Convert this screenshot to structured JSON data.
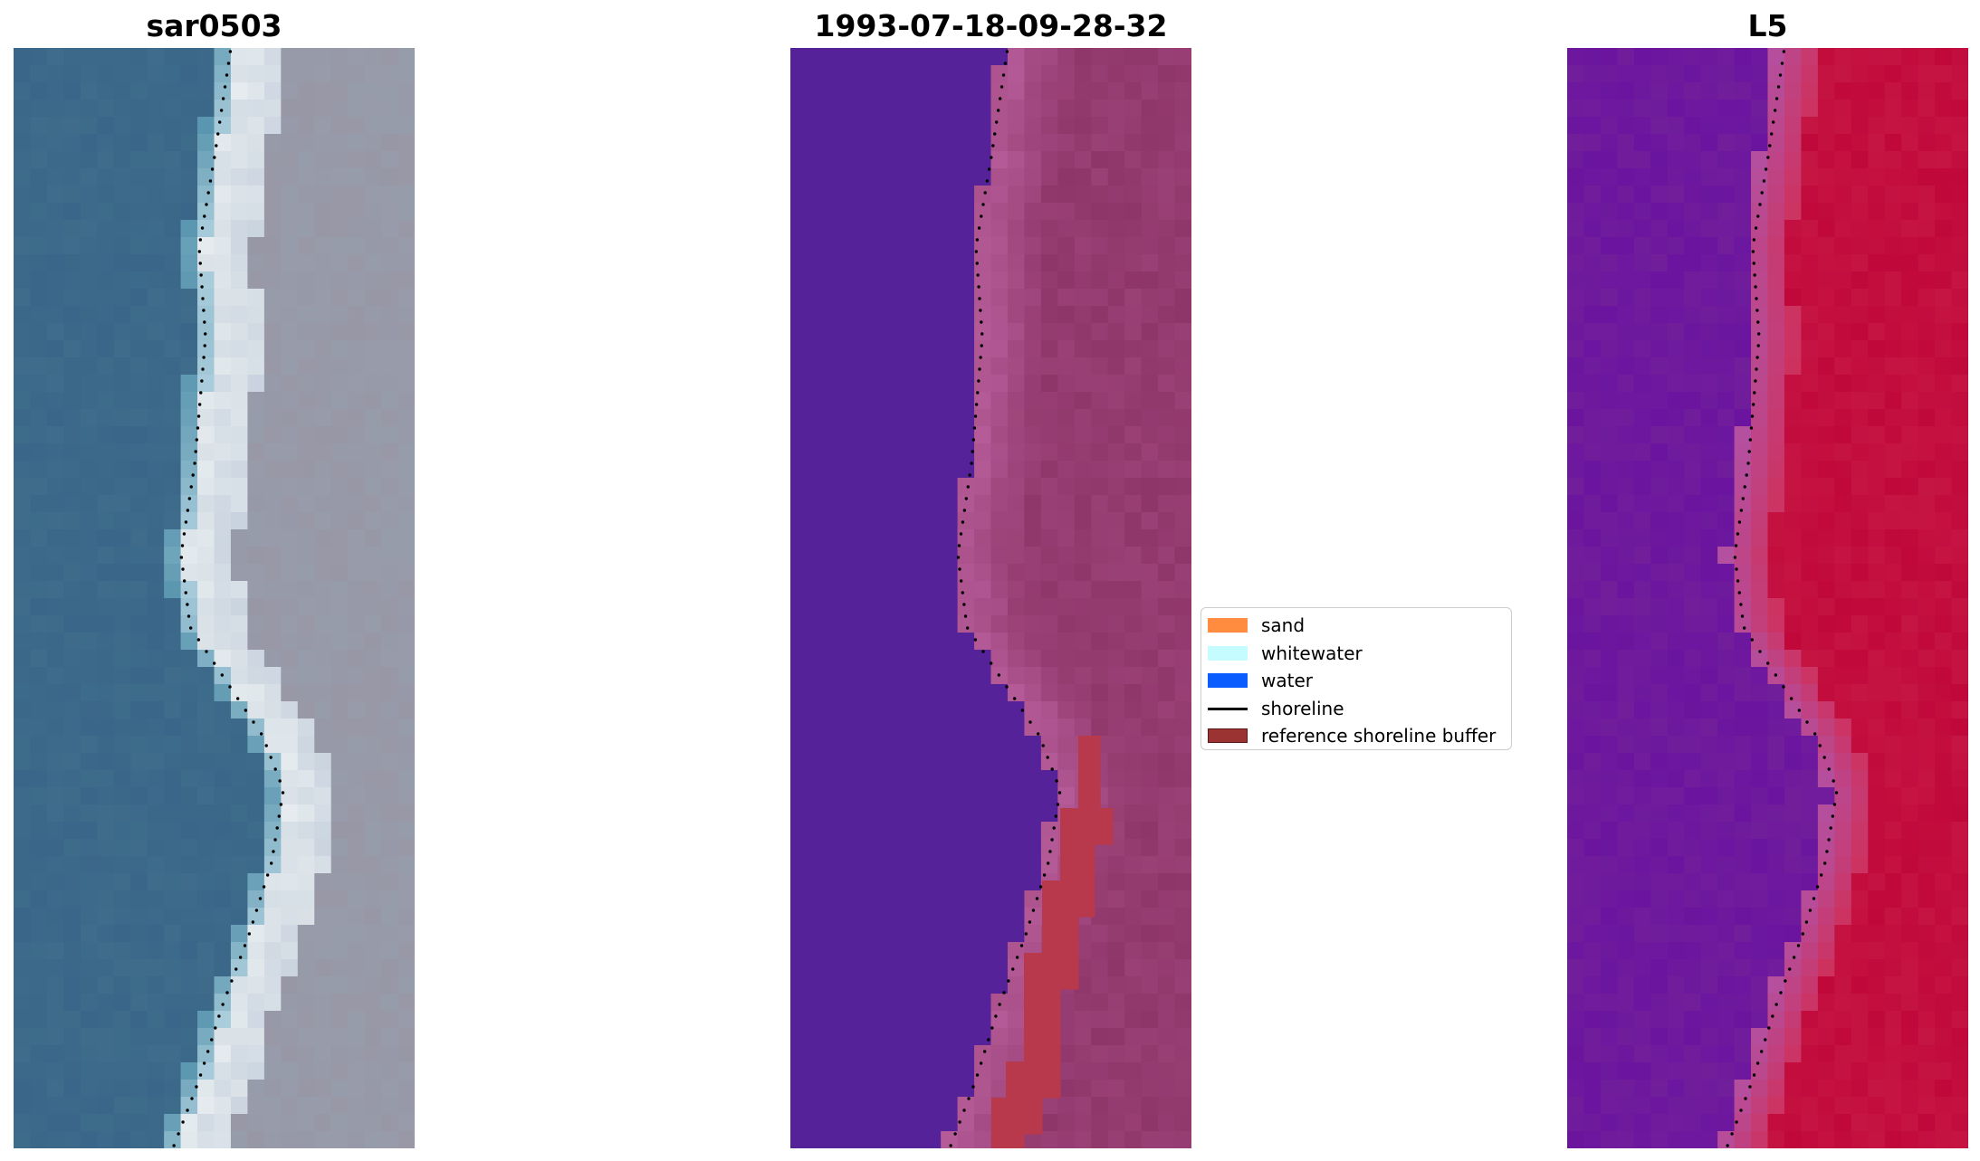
{
  "panels": [
    {
      "title": "sar0503"
    },
    {
      "title": "1993-07-18-09-28-32"
    },
    {
      "title": "L5"
    }
  ],
  "legend": {
    "items": [
      {
        "label": "sand",
        "type": "patch",
        "color": "#ff8c3f"
      },
      {
        "label": "whitewater",
        "type": "patch",
        "color": "#c4fcff"
      },
      {
        "label": "water",
        "type": "patch",
        "color": "#0a5cff"
      },
      {
        "label": "shoreline",
        "type": "line",
        "color": "#000000"
      },
      {
        "label": "reference shoreline buffer",
        "type": "patch",
        "color": "#9c3333",
        "edge": "#5a1a1a"
      }
    ]
  },
  "colors": {
    "water_rgb": "#3a6689",
    "surf_rgb": "#e8eef0",
    "land_rgb": "#9897a6",
    "class_water": "#55229a",
    "class_land": "#8e3569",
    "class_transition": "#b55b98",
    "buffer": "#b8384c",
    "index_water": "#6a14a0",
    "index_land": "#c0083a",
    "shoreline_dots": "#000000"
  }
}
